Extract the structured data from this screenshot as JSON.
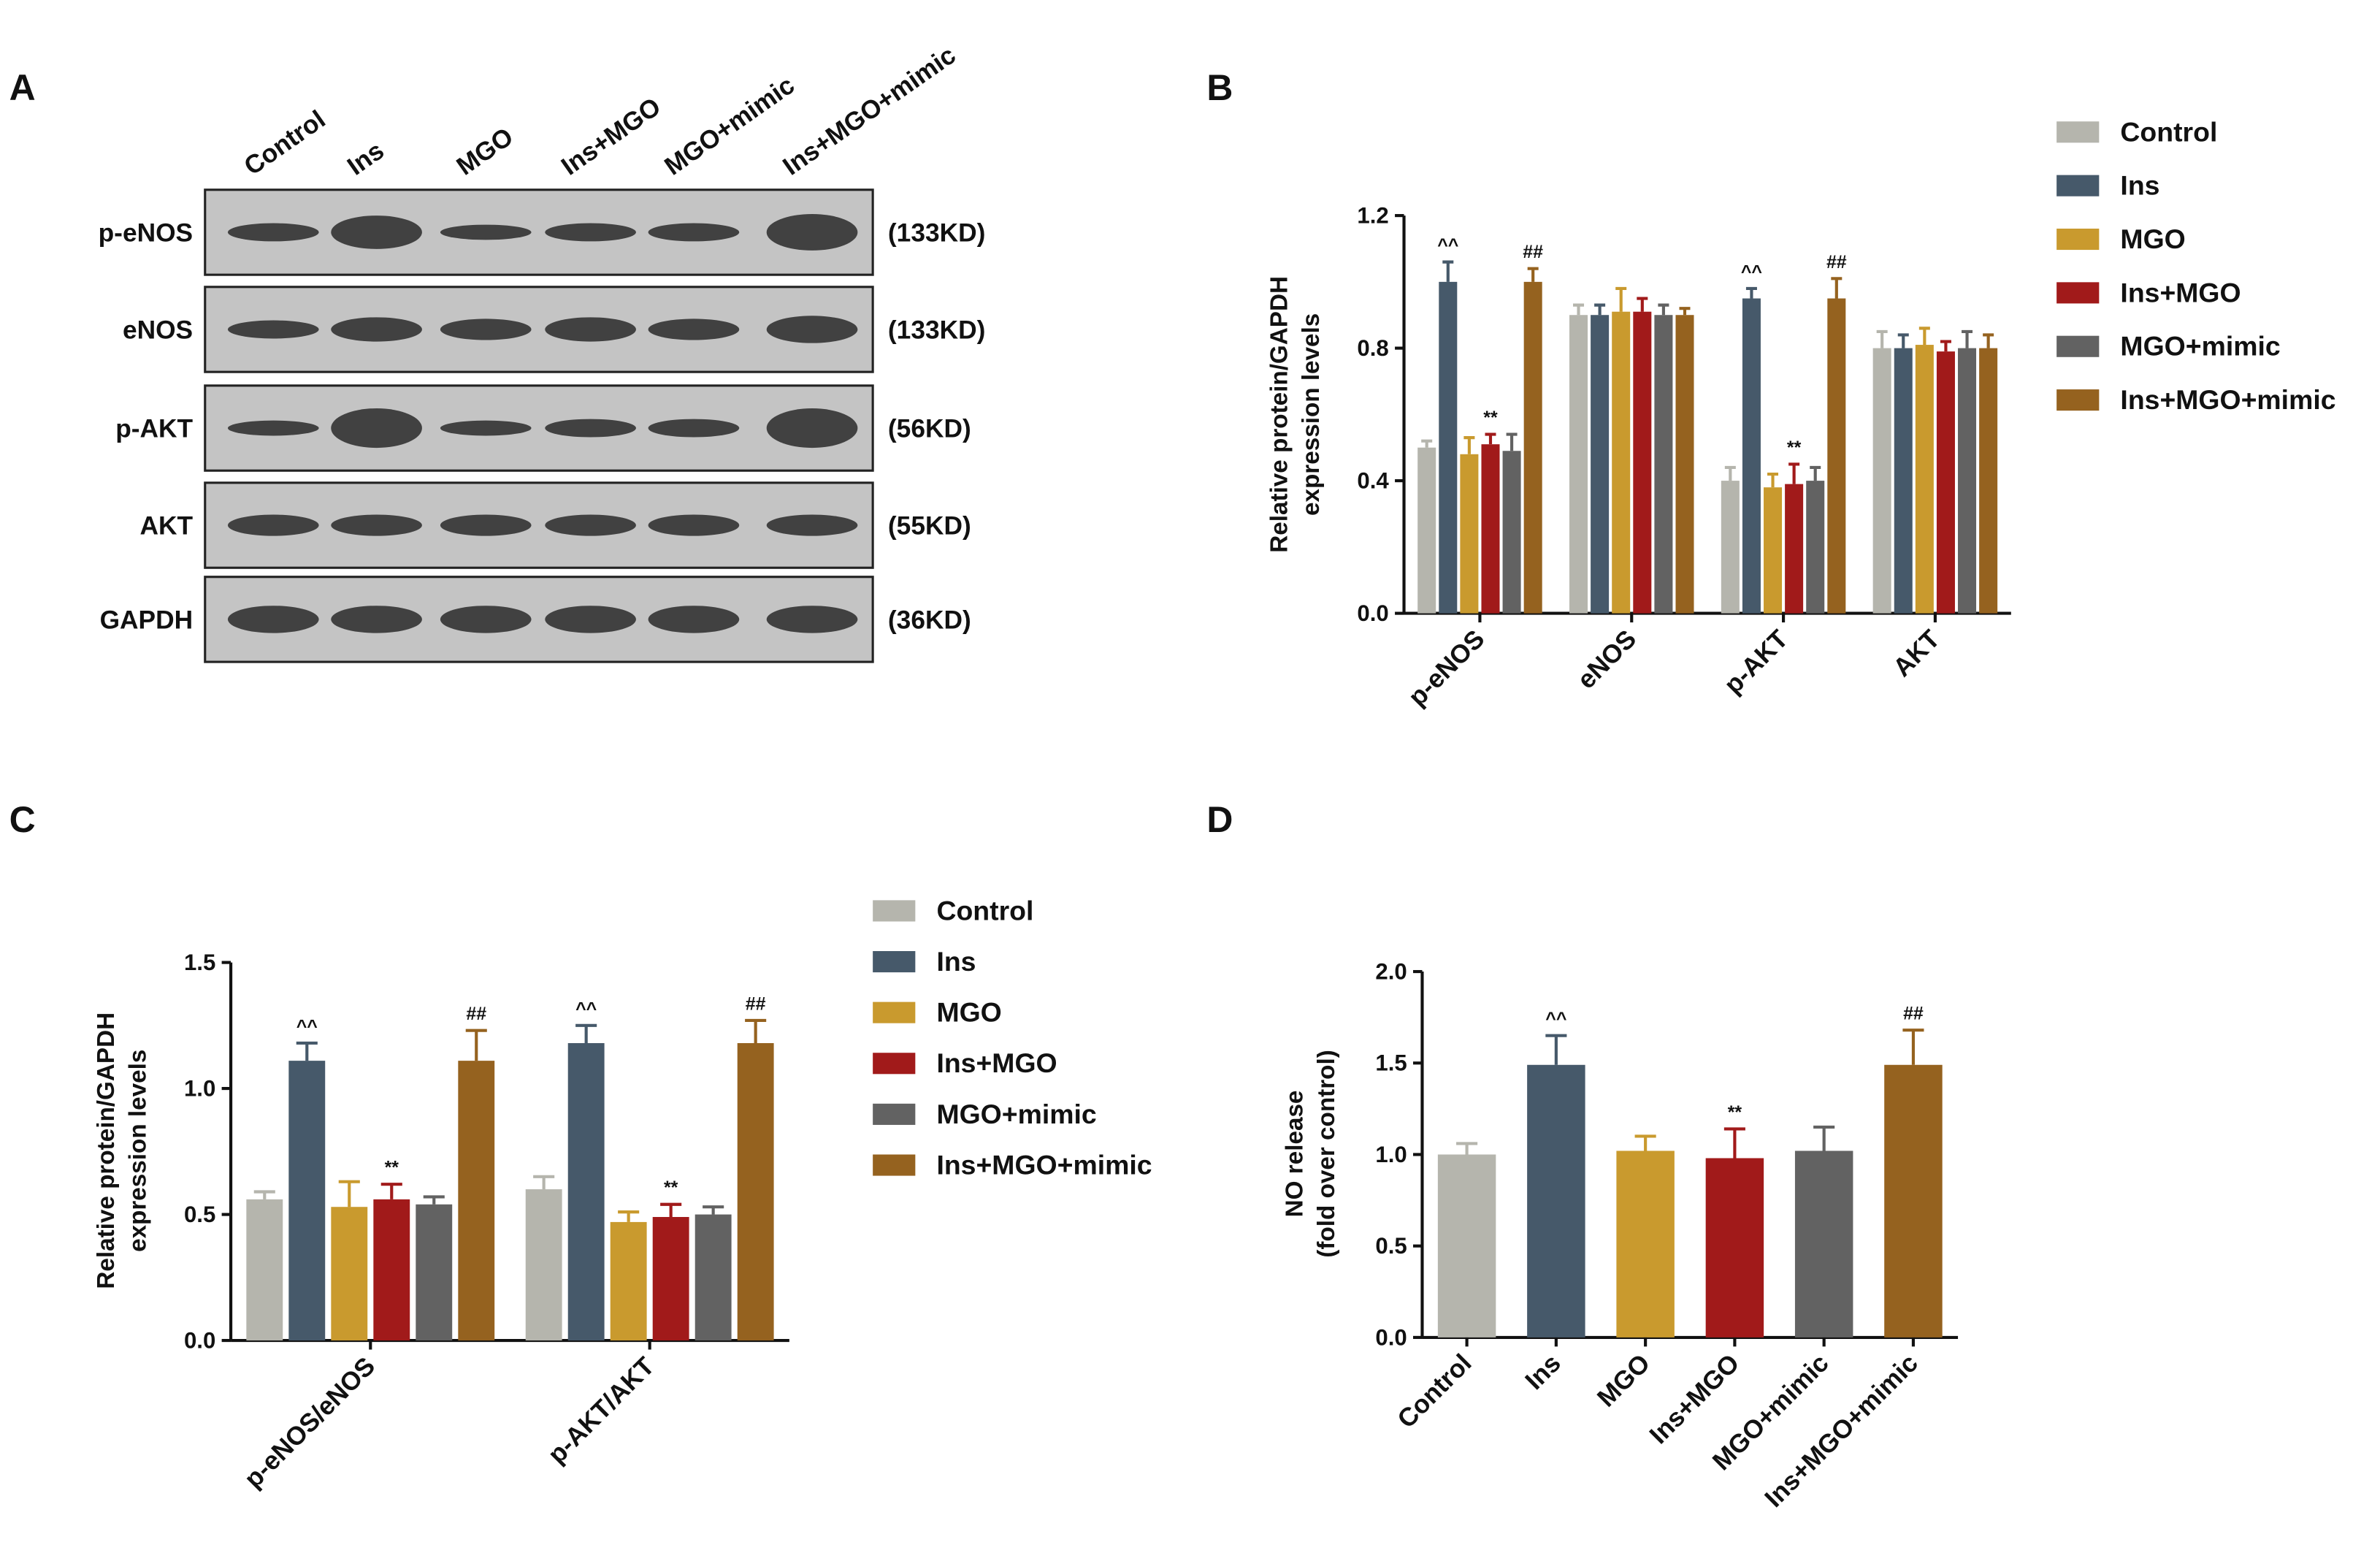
{
  "blot": {
    "label": "A",
    "lanes": [
      "Control",
      "Ins",
      "MGO",
      "Ins+MGO",
      "MGO+mimic",
      "Ins+MGO+mimic"
    ],
    "rows": [
      {
        "protein": "p-eNOS",
        "size": "(133KD)"
      },
      {
        "protein": "eNOS",
        "size": "(133KD)"
      },
      {
        "protein": "p-AKT",
        "size": "(56KD)"
      },
      {
        "protein": "AKT",
        "size": "(55KD)"
      },
      {
        "protein": "GAPDH",
        "size": "(36KD)"
      }
    ]
  },
  "chart_data": [
    {
      "type": "bar",
      "label": "B",
      "ylabel": [
        "Relative protein/GAPDH",
        "expression levels"
      ],
      "categories": [
        "p-eNOS",
        "eNOS",
        "p-AKT",
        "AKT"
      ],
      "ylim": [
        0,
        1.2
      ],
      "yticks": [
        {
          "value": 0,
          "label": "0.0"
        },
        0.4,
        0.8,
        1.2
      ],
      "series": [
        {
          "name": "Control",
          "color": "#b5b5ad",
          "values": [
            0.5,
            0.9,
            0.4,
            0.8
          ],
          "errors": [
            0.02,
            0.03,
            0.04,
            0.05
          ],
          "annotations": [
            null,
            null,
            null,
            null
          ]
        },
        {
          "name": "Ins",
          "color": "#46596a",
          "values": [
            1.0,
            0.9,
            0.95,
            0.8
          ],
          "errors": [
            0.06,
            0.03,
            0.03,
            0.04
          ],
          "annotations": [
            "^^",
            null,
            "^^",
            null
          ]
        },
        {
          "name": "MGO",
          "color": "#c99a2e",
          "values": [
            0.48,
            0.91,
            0.38,
            0.81
          ],
          "errors": [
            0.05,
            0.07,
            0.04,
            0.05
          ],
          "annotations": [
            null,
            null,
            null,
            null
          ]
        },
        {
          "name": "Ins+MGO",
          "color": "#a11a1a",
          "values": [
            0.51,
            0.91,
            0.39,
            0.79
          ],
          "errors": [
            0.03,
            0.04,
            0.06,
            0.03
          ],
          "annotations": [
            "**",
            null,
            "**",
            null
          ]
        },
        {
          "name": "MGO+mimic",
          "color": "#626262",
          "values": [
            0.49,
            0.9,
            0.4,
            0.8
          ],
          "errors": [
            0.05,
            0.03,
            0.04,
            0.05
          ],
          "annotations": [
            null,
            null,
            null,
            null
          ]
        },
        {
          "name": "Ins+MGO+mimic",
          "color": "#95621f",
          "values": [
            1.0,
            0.9,
            0.95,
            0.8
          ],
          "errors": [
            0.04,
            0.02,
            0.06,
            0.04
          ],
          "annotations": [
            "##",
            null,
            "##",
            null
          ]
        }
      ]
    },
    {
      "type": "bar",
      "label": "C",
      "ylabel": [
        "Relative protein/GAPDH",
        "expression levels"
      ],
      "categories": [
        "p-eNOS/eNOS",
        "p-AKT/AKT"
      ],
      "ylim": [
        0,
        1.5
      ],
      "yticks": [
        {
          "value": 0,
          "label": "0.0"
        },
        0.5,
        {
          "value": 1,
          "label": "1.0"
        },
        1.5
      ],
      "series": [
        {
          "name": "Control",
          "color": "#b5b5ad",
          "values": [
            0.56,
            0.6
          ],
          "errors": [
            0.03,
            0.05
          ],
          "annotations": [
            null,
            null
          ]
        },
        {
          "name": "Ins",
          "color": "#46596a",
          "values": [
            1.11,
            1.18
          ],
          "errors": [
            0.07,
            0.07
          ],
          "annotations": [
            "^^",
            "^^"
          ]
        },
        {
          "name": "MGO",
          "color": "#c99a2e",
          "values": [
            0.53,
            0.47
          ],
          "errors": [
            0.1,
            0.04
          ],
          "annotations": [
            null,
            null
          ]
        },
        {
          "name": "Ins+MGO",
          "color": "#a11a1a",
          "values": [
            0.56,
            0.49
          ],
          "errors": [
            0.06,
            0.05
          ],
          "annotations": [
            "**",
            "**"
          ]
        },
        {
          "name": "MGO+mimic",
          "color": "#626262",
          "values": [
            0.54,
            0.5
          ],
          "errors": [
            0.03,
            0.03
          ],
          "annotations": [
            null,
            null
          ]
        },
        {
          "name": "Ins+MGO+mimic",
          "color": "#95621f",
          "values": [
            1.11,
            1.18
          ],
          "errors": [
            0.12,
            0.09
          ],
          "annotations": [
            "##",
            "##"
          ]
        }
      ]
    },
    {
      "type": "bar",
      "label": "D",
      "ylabel": [
        "NO release",
        "(fold over control)"
      ],
      "categories": [
        "Control",
        "Ins",
        "MGO",
        "Ins+MGO",
        "MGO+mimic",
        "Ins+MGO+mimic"
      ],
      "ylim": [
        0,
        2
      ],
      "yticks": [
        {
          "value": 0,
          "label": "0.0"
        },
        0.5,
        {
          "value": 1,
          "label": "1.0"
        },
        1.5,
        {
          "value": 2,
          "label": "2.0"
        }
      ],
      "values": [
        1.0,
        1.49,
        1.02,
        0.98,
        1.02,
        1.49
      ],
      "errors": [
        0.06,
        0.16,
        0.08,
        0.16,
        0.13,
        0.19
      ],
      "colors": [
        "#b5b5ad",
        "#46596a",
        "#c99a2e",
        "#a11a1a",
        "#626262",
        "#95621f"
      ],
      "annotations": [
        null,
        "^^",
        null,
        "**",
        null,
        "##"
      ]
    }
  ]
}
